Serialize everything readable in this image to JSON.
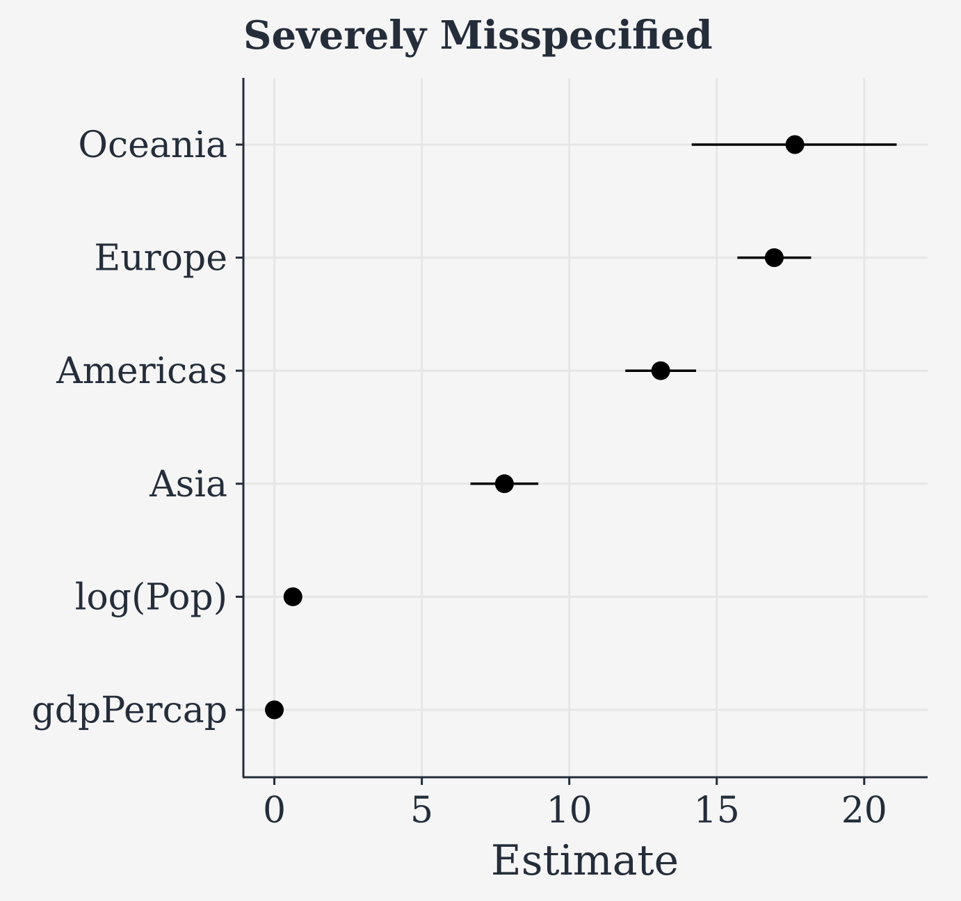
{
  "chart_data": {
    "type": "scatter",
    "title": "Severely Misspecified",
    "xlabel": "Estimate",
    "ylabel": "",
    "xlim": [
      -1.05,
      22.15
    ],
    "xticks": [
      0,
      5,
      10,
      15,
      20
    ],
    "xtick_labels": [
      "0",
      "5",
      "10",
      "15",
      "20"
    ],
    "grid": true,
    "legend": "none",
    "categories": [
      "Oceania",
      "Europe",
      "Americas",
      "Asia",
      "log(Pop)",
      "gdpPercap"
    ],
    "series": [
      {
        "estimate": [
          17.65,
          16.95,
          13.1,
          7.8,
          0.63,
          0.0
        ],
        "ci_low": [
          14.15,
          15.7,
          11.9,
          6.65,
          0.55,
          -0.05
        ],
        "ci_high": [
          21.1,
          18.2,
          14.3,
          8.95,
          0.71,
          0.05
        ]
      }
    ],
    "colors": {
      "point": "#000000",
      "axis": "#252d3a",
      "grid": "#e6e6e6",
      "background": "#f5f5f5",
      "text": "#252d3a"
    }
  }
}
